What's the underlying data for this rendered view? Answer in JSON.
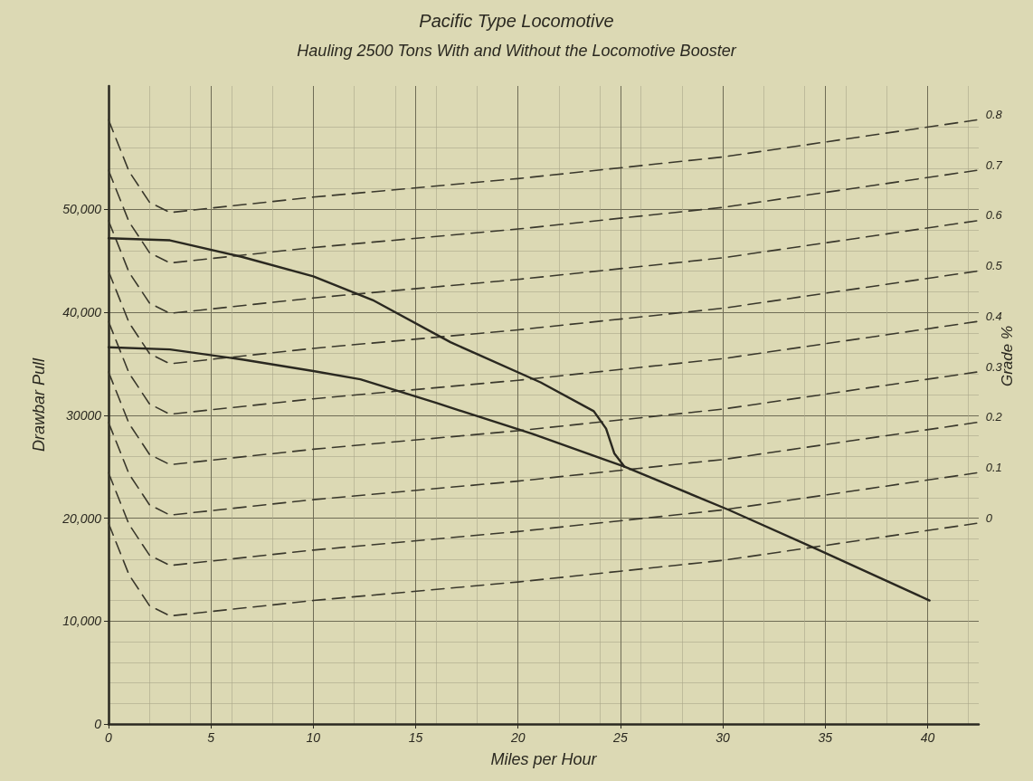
{
  "chart_data": {
    "type": "line",
    "title": "Pacific Type Locomotive",
    "subtitle": "Hauling 2500 Tons With and Without the Locomotive Booster",
    "xlabel": "Miles per Hour",
    "ylabel": "Drawbar Pull",
    "annotations": [
      "Grade %"
    ],
    "xlim": [
      0,
      42.5
    ],
    "xticks": [
      0,
      5,
      10,
      15,
      20,
      25,
      30,
      35,
      40
    ],
    "ylim": [
      0,
      62000
    ],
    "yticks": [
      0,
      {
        "value": 10000,
        "label": "10,000"
      },
      {
        "value": 20000,
        "label": "20,000"
      },
      {
        "value": 30000,
        "label": "30000"
      },
      {
        "value": 40000,
        "label": "40,000"
      },
      {
        "value": 50000,
        "label": "50,000"
      }
    ],
    "grid": true,
    "legend": false,
    "marker": "none",
    "series": [
      {
        "color": "#2a2820",
        "line_style": "solid",
        "x": [
          0,
          3,
          6.5,
          10,
          12.9,
          16.7,
          21.1,
          23.7,
          24.3,
          24.7,
          25.2
        ],
        "values": [
          47200,
          47000,
          45400,
          43500,
          41200,
          37100,
          33200,
          30400,
          28700,
          26300,
          25000
        ]
      },
      {
        "color": "#2a2820",
        "line_style": "solid",
        "x": [
          0,
          3,
          6.6,
          10,
          12.3,
          16,
          20.7,
          25.2,
          30.3,
          34.7,
          40.1
        ],
        "values": [
          36600,
          36400,
          35400,
          34300,
          33500,
          31200,
          28200,
          25000,
          20800,
          16900,
          12000
        ]
      },
      {
        "name": "0",
        "color": "#3a382c",
        "line_style": "dashed",
        "x": [
          0,
          1,
          2,
          3,
          10,
          20,
          30,
          42.4
        ],
        "values": [
          19500,
          14500,
          11500,
          10500,
          12000,
          13800,
          15900,
          19500
        ]
      },
      {
        "name": "0.1",
        "color": "#3a382c",
        "line_style": "dashed",
        "x": [
          0,
          1,
          2,
          3,
          10,
          20,
          30,
          42.4
        ],
        "values": [
          24400,
          19400,
          16400,
          15400,
          16900,
          18700,
          20800,
          24400
        ]
      },
      {
        "name": "0.2",
        "color": "#3a382c",
        "line_style": "dashed",
        "x": [
          0,
          1,
          2,
          3,
          10,
          20,
          30,
          42.4
        ],
        "values": [
          29300,
          24300,
          21300,
          20300,
          21800,
          23600,
          25700,
          29300
        ]
      },
      {
        "name": "0.3",
        "color": "#3a382c",
        "line_style": "dashed",
        "x": [
          0,
          1,
          2,
          3,
          10,
          20,
          30,
          42.4
        ],
        "values": [
          34200,
          29200,
          26200,
          25200,
          26700,
          28500,
          30600,
          34200
        ]
      },
      {
        "name": "0.4",
        "color": "#3a382c",
        "line_style": "dashed",
        "x": [
          0,
          1,
          2,
          3,
          10,
          20,
          30,
          42.4
        ],
        "values": [
          39100,
          34100,
          31100,
          30100,
          31600,
          33400,
          35500,
          39100
        ]
      },
      {
        "name": "0.5",
        "color": "#3a382c",
        "line_style": "dashed",
        "x": [
          0,
          1,
          2,
          3,
          10,
          20,
          30,
          42.4
        ],
        "values": [
          44000,
          39000,
          36000,
          35000,
          36500,
          38300,
          40400,
          44000
        ]
      },
      {
        "name": "0.6",
        "color": "#3a382c",
        "line_style": "dashed",
        "x": [
          0,
          1,
          2,
          3,
          10,
          20,
          30,
          42.4
        ],
        "values": [
          48900,
          43900,
          40900,
          39900,
          41400,
          43200,
          45300,
          48900
        ]
      },
      {
        "name": "0.7",
        "color": "#3a382c",
        "line_style": "dashed",
        "x": [
          0,
          1,
          2,
          3,
          10,
          20,
          30,
          42.4
        ],
        "values": [
          53800,
          48800,
          45800,
          44800,
          46300,
          48100,
          50200,
          53800
        ]
      },
      {
        "name": "0.8",
        "color": "#3a382c",
        "line_style": "dashed",
        "x": [
          0,
          1,
          2,
          3,
          10,
          20,
          30,
          42.4
        ],
        "values": [
          58700,
          53700,
          50700,
          49700,
          51200,
          53000,
          55100,
          58700
        ]
      }
    ]
  }
}
